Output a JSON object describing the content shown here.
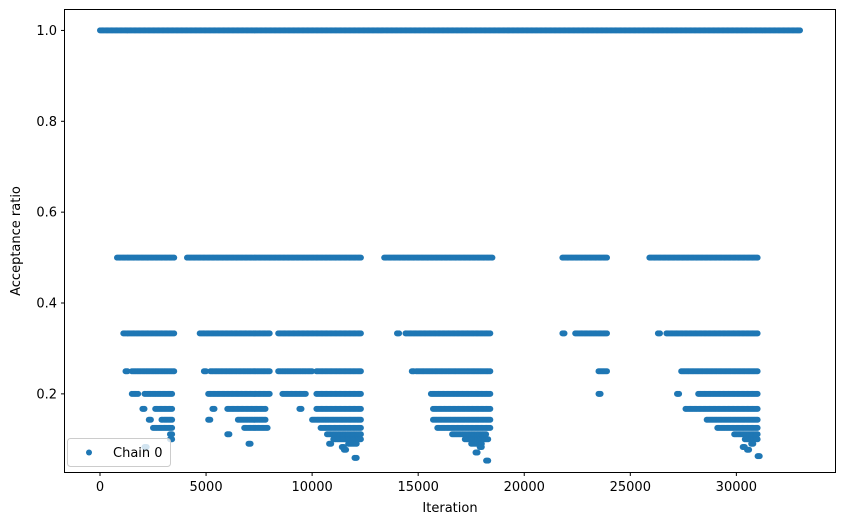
{
  "chart_data": {
    "type": "scatter",
    "xlabel": "Iteration",
    "ylabel": "Acceptance ratio",
    "xlim": [
      -1650,
      34650
    ],
    "ylim": [
      0.028,
      1.045
    ],
    "xticks": [
      0,
      5000,
      10000,
      15000,
      20000,
      25000,
      30000
    ],
    "xtick_labels": [
      "0",
      "5000",
      "10000",
      "15000",
      "20000",
      "25000",
      "30000"
    ],
    "yticks": [
      0.2,
      0.4,
      0.6,
      0.8,
      1.0
    ],
    "ytick_labels": [
      "0.2",
      "0.4",
      "0.6",
      "0.8",
      "1.0"
    ],
    "grid": false,
    "legend_position": "lower-left",
    "marker_color": "#1f77b4",
    "series": [
      {
        "name": "Chain 0",
        "color": "#1f77b4",
        "bands": [
          {
            "y": 1.0,
            "ranges": [
              [
                0,
                33000
              ]
            ]
          },
          {
            "y": 0.5,
            "ranges": [
              [
                800,
                3500
              ],
              [
                4100,
                12300
              ],
              [
                13400,
                18500
              ],
              [
                21800,
                23900
              ],
              [
                25900,
                31000
              ]
            ]
          },
          {
            "y": 0.333,
            "ranges": [
              [
                1100,
                3500
              ],
              [
                4700,
                8000
              ],
              [
                8400,
                12300
              ],
              [
                14000,
                14100
              ],
              [
                14400,
                18400
              ],
              [
                21800,
                21900
              ],
              [
                22400,
                23900
              ],
              [
                26300,
                26400
              ],
              [
                26700,
                31000
              ]
            ]
          },
          {
            "y": 0.25,
            "ranges": [
              [
                1200,
                1300
              ],
              [
                1500,
                3500
              ],
              [
                4900,
                5000
              ],
              [
                5200,
                8000
              ],
              [
                8400,
                10000
              ],
              [
                10200,
                12300
              ],
              [
                14700,
                14800
              ],
              [
                14900,
                18400
              ],
              [
                23500,
                23900
              ],
              [
                27400,
                31000
              ]
            ]
          },
          {
            "y": 0.2,
            "ranges": [
              [
                1500,
                1800
              ],
              [
                2100,
                3400
              ],
              [
                5100,
                8000
              ],
              [
                8600,
                9700
              ],
              [
                10200,
                12300
              ],
              [
                15600,
                18400
              ],
              [
                23500,
                23600
              ],
              [
                27200,
                27300
              ],
              [
                28200,
                31000
              ]
            ]
          },
          {
            "y": 0.167,
            "ranges": [
              [
                2000,
                2100
              ],
              [
                2600,
                3400
              ],
              [
                5300,
                5400
              ],
              [
                6000,
                7800
              ],
              [
                9400,
                9500
              ],
              [
                10200,
                12300
              ],
              [
                15700,
                18400
              ],
              [
                27600,
                31000
              ]
            ]
          },
          {
            "y": 0.143,
            "ranges": [
              [
                2300,
                2400
              ],
              [
                2900,
                3400
              ],
              [
                5100,
                5200
              ],
              [
                6500,
                7800
              ],
              [
                10000,
                12300
              ],
              [
                15700,
                18400
              ],
              [
                28600,
                31000
              ]
            ]
          },
          {
            "y": 0.125,
            "ranges": [
              [
                2500,
                3400
              ],
              [
                6800,
                7900
              ],
              [
                10400,
                12300
              ],
              [
                15900,
                18400
              ],
              [
                29100,
                31000
              ]
            ]
          },
          {
            "y": 0.111,
            "ranges": [
              [
                3300,
                3400
              ],
              [
                6000,
                6100
              ],
              [
                10700,
                12300
              ],
              [
                16600,
                18200
              ],
              [
                29900,
                31000
              ]
            ]
          },
          {
            "y": 0.1,
            "ranges": [
              [
                3300,
                3400
              ],
              [
                11000,
                12300
              ],
              [
                17200,
                18300
              ],
              [
                30400,
                31000
              ]
            ]
          },
          {
            "y": 0.09,
            "ranges": [
              [
                7000,
                7100
              ],
              [
                10800,
                10900
              ],
              [
                11700,
                12100
              ],
              [
                17500,
                18000
              ],
              [
                30700,
                30800
              ]
            ]
          },
          {
            "y": 0.083,
            "ranges": [
              [
                2100,
                2200
              ],
              [
                11400,
                11500
              ],
              [
                17900,
                18000
              ],
              [
                30300,
                30400
              ]
            ]
          },
          {
            "y": 0.077,
            "ranges": [
              [
                11500,
                11600
              ],
              [
                30500,
                30600
              ]
            ]
          },
          {
            "y": 0.071,
            "ranges": [
              [
                17700,
                17800
              ]
            ]
          },
          {
            "y": 0.063,
            "ranges": [
              [
                31000,
                31100
              ]
            ]
          },
          {
            "y": 0.059,
            "ranges": [
              [
                12000,
                12100
              ]
            ]
          },
          {
            "y": 0.053,
            "ranges": [
              [
                18200,
                18300
              ]
            ]
          }
        ]
      }
    ]
  }
}
